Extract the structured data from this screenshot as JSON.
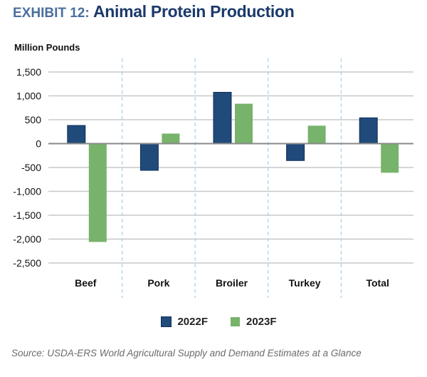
{
  "title": {
    "prefix": "EXHIBIT 12:",
    "main": "Animal Protein Production"
  },
  "source": "Source: USDA-ERS World Agricultural Supply and Demand Estimates at a Glance",
  "colors": {
    "series_2022F": "#1f4a7a",
    "series_2022F_outline": "#102f5c",
    "series_2023F": "#77b36b",
    "gridline": "#c8c8c8",
    "zero_line": "#8a8a8a",
    "divider": "#a9d2ee"
  },
  "chart_data": {
    "type": "bar",
    "title": "Animal Protein Production",
    "xlabel": "",
    "ylabel": "Million Pounds",
    "categories": [
      "Beef",
      "Pork",
      "Broiler",
      "Turkey",
      "Total"
    ],
    "series": [
      {
        "name": "2022F",
        "values": [
          380,
          -560,
          1075,
          -355,
          540
        ]
      },
      {
        "name": "2023F",
        "values": [
          -2060,
          210,
          835,
          375,
          -610
        ]
      }
    ],
    "ylim": [
      -2500,
      1500
    ],
    "yticks": [
      1500,
      1000,
      500,
      0,
      -500,
      -1000,
      -1500,
      -2000,
      -2500
    ],
    "ytick_labels": [
      "1,500",
      "1,000",
      "500",
      "0",
      "-500",
      "-1,000",
      "-1,500",
      "-2,000",
      "-2,500"
    ],
    "grid": true,
    "legend": "bottom-center"
  }
}
